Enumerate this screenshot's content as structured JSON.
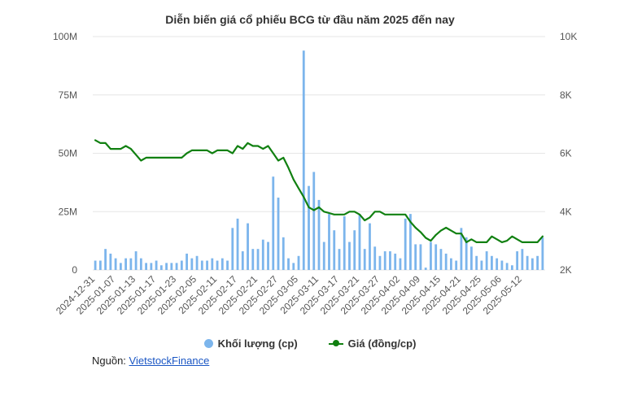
{
  "chart_data": {
    "type": "bar+line",
    "title": "Diễn biến giá cổ phiếu BCG từ đầu năm 2025 đến nay",
    "colors": {
      "volume": "#7cb5ec",
      "price": "#118011",
      "grid": "#e6e6e6"
    },
    "y_left": {
      "ticks": [
        "0",
        "25M",
        "50M",
        "75M",
        "100M"
      ],
      "ylim": [
        0,
        100000000
      ]
    },
    "y_right": {
      "ticks": [
        "2K",
        "4K",
        "6K",
        "8K",
        "10K"
      ],
      "ylim": [
        2000,
        10000
      ]
    },
    "x_ticks": [
      "2024-12-31",
      "2025-01-07",
      "2025-01-13",
      "2025-01-17",
      "2025-01-23",
      "2025-02-05",
      "2025-02-11",
      "2025-02-17",
      "2025-02-21",
      "2025-02-27",
      "2025-03-05",
      "2025-03-11",
      "2025-03-17",
      "2025-03-21",
      "2025-03-27",
      "2025-04-02",
      "2025-04-09",
      "2025-04-15",
      "2025-04-21",
      "2025-04-25",
      "2025-05-06",
      "2025-05-12"
    ],
    "tick_every": 4,
    "series": [
      {
        "name": "Khối lượng (cp)",
        "type": "bar",
        "axis": "left",
        "values": [
          4,
          4,
          9,
          7,
          5,
          3,
          5,
          5,
          8,
          5,
          3,
          3,
          4,
          2,
          3,
          3,
          3,
          4,
          7,
          5,
          6,
          4,
          4,
          5,
          4,
          5,
          4,
          18,
          22,
          8,
          20,
          9,
          9,
          13,
          12,
          40,
          31,
          14,
          5,
          3,
          6,
          94,
          36,
          42,
          30,
          12,
          24,
          17,
          9,
          23,
          12,
          17,
          24,
          9,
          20,
          10,
          6,
          8,
          8,
          7,
          5,
          22,
          24,
          11,
          11,
          1,
          12,
          11,
          9,
          7,
          5,
          4,
          18,
          14,
          10,
          6,
          4,
          8,
          6,
          5,
          4,
          3,
          2,
          8,
          9,
          6,
          5,
          6,
          14
        ],
        "scale": 1000000
      },
      {
        "name": "Giá (đồng/cp)",
        "type": "line",
        "axis": "right",
        "values": [
          6450,
          6350,
          6350,
          6150,
          6150,
          6150,
          6250,
          6150,
          5950,
          5750,
          5850,
          5850,
          5850,
          5850,
          5850,
          5850,
          5850,
          5850,
          6000,
          6100,
          6100,
          6100,
          6100,
          6000,
          6100,
          6100,
          6100,
          6000,
          6250,
          6150,
          6350,
          6250,
          6250,
          6150,
          6250,
          6000,
          5750,
          5850,
          5500,
          5100,
          4800,
          4500,
          4150,
          4050,
          4150,
          4000,
          3950,
          3900,
          3900,
          3900,
          4000,
          4000,
          3900,
          3700,
          3800,
          4000,
          4000,
          3900,
          3900,
          3900,
          3900,
          3900,
          3650,
          3450,
          3300,
          3100,
          3000,
          3200,
          3350,
          3450,
          3350,
          3250,
          3250,
          2950,
          3050,
          2950,
          2950,
          2950,
          3150,
          3050,
          2950,
          3000,
          3150,
          3050,
          2950,
          2950,
          2950,
          2950,
          3150
        ]
      }
    ]
  },
  "legend": {
    "volume_label": "Khối lượng (cp)",
    "price_label": "Giá (đồng/cp)"
  },
  "source": {
    "label": "Nguồn:",
    "link_text": "VietstockFinance"
  }
}
